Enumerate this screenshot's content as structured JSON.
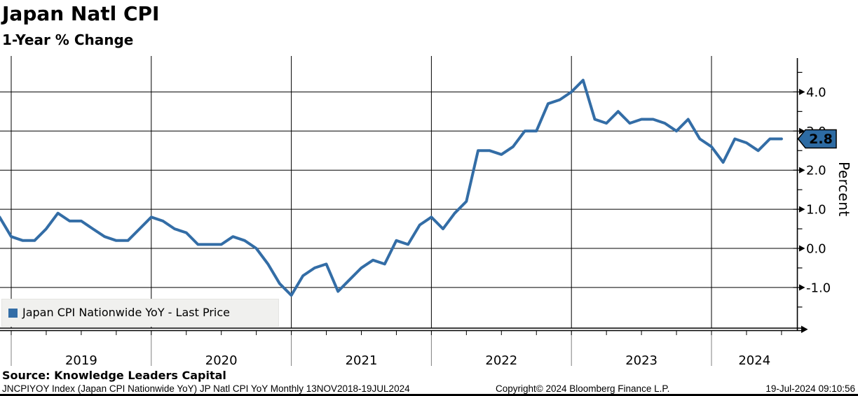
{
  "header": {
    "title": "Japan Natl CPI",
    "subtitle": "1-Year % Change"
  },
  "legend": {
    "label": "Japan CPI Nationwide YoY - Last Price"
  },
  "y_axis": {
    "label": "Percent"
  },
  "footer": {
    "source": "Source: Knowledge Leaders Capital",
    "description": "JNCPIYOY Index (Japan CPI Nationwide YoY) JP Natl CPI YoY  Monthly 13NOV2018-19JUL2024",
    "copyright": "Copyright© 2024 Bloomberg Finance L.P.",
    "timestamp": "19-Jul-2024 09:10:56"
  },
  "chart_data": {
    "type": "line",
    "title": "Japan Natl CPI",
    "subtitle": "1-Year % Change",
    "series_name": "Japan CPI Nationwide YoY - Last Price",
    "frequency": "monthly",
    "x_range": "13NOV2018-19JUL2024",
    "x": [
      "2018-11",
      "2018-12",
      "2019-01",
      "2019-02",
      "2019-03",
      "2019-04",
      "2019-05",
      "2019-06",
      "2019-07",
      "2019-08",
      "2019-09",
      "2019-10",
      "2019-11",
      "2019-12",
      "2020-01",
      "2020-02",
      "2020-03",
      "2020-04",
      "2020-05",
      "2020-06",
      "2020-07",
      "2020-08",
      "2020-09",
      "2020-10",
      "2020-11",
      "2020-12",
      "2021-01",
      "2021-02",
      "2021-03",
      "2021-04",
      "2021-05",
      "2021-06",
      "2021-07",
      "2021-08",
      "2021-09",
      "2021-10",
      "2021-11",
      "2021-12",
      "2022-01",
      "2022-02",
      "2022-03",
      "2022-04",
      "2022-05",
      "2022-06",
      "2022-07",
      "2022-08",
      "2022-09",
      "2022-10",
      "2022-11",
      "2022-12",
      "2023-01",
      "2023-02",
      "2023-03",
      "2023-04",
      "2023-05",
      "2023-06",
      "2023-07",
      "2023-08",
      "2023-09",
      "2023-10",
      "2023-11",
      "2023-12",
      "2024-01",
      "2024-02",
      "2024-03",
      "2024-04",
      "2024-05",
      "2024-06"
    ],
    "values": [
      0.8,
      0.3,
      0.2,
      0.2,
      0.5,
      0.9,
      0.7,
      0.7,
      0.5,
      0.3,
      0.2,
      0.2,
      0.5,
      0.8,
      0.7,
      0.5,
      0.4,
      0.1,
      0.1,
      0.1,
      0.3,
      0.2,
      0.0,
      -0.4,
      -0.9,
      -1.2,
      -0.7,
      -0.5,
      -0.4,
      -1.1,
      -0.8,
      -0.5,
      -0.3,
      -0.4,
      0.2,
      0.1,
      0.6,
      0.8,
      0.5,
      0.9,
      1.2,
      2.5,
      2.5,
      2.4,
      2.6,
      3.0,
      3.0,
      3.7,
      3.8,
      4.0,
      4.3,
      3.3,
      3.2,
      3.5,
      3.2,
      3.3,
      3.3,
      3.2,
      3.0,
      3.3,
      2.8,
      2.6,
      2.2,
      2.8,
      2.7,
      2.5,
      2.8,
      2.8
    ],
    "last_price": {
      "label": "2.8",
      "value": 2.8
    },
    "ylabel": "Percent",
    "ylim": [
      -2.0,
      5.0
    ],
    "y_major_ticks": [
      4,
      3,
      2,
      1,
      0,
      -1
    ],
    "y_tick_labels": [
      "4.0",
      "3.0",
      "2.0",
      "1.0",
      "0.0",
      "-1.0"
    ],
    "y_minor_ticks": [
      4.5,
      3.5,
      2.5,
      1.5,
      0.5,
      -0.5,
      -1.5
    ],
    "x_year_labels": [
      "2019",
      "2020",
      "2021",
      "2022",
      "2023",
      "2024"
    ],
    "grid": true,
    "legend_position": "bottom-left",
    "colors": {
      "line": "#336da6",
      "grid": "#000000",
      "year_separator": "#808080",
      "legend_bg": "#f0f0ee",
      "badge_bg": "#2d6ba3",
      "badge_border": "#000000",
      "badge_text": "#ffffff"
    }
  }
}
